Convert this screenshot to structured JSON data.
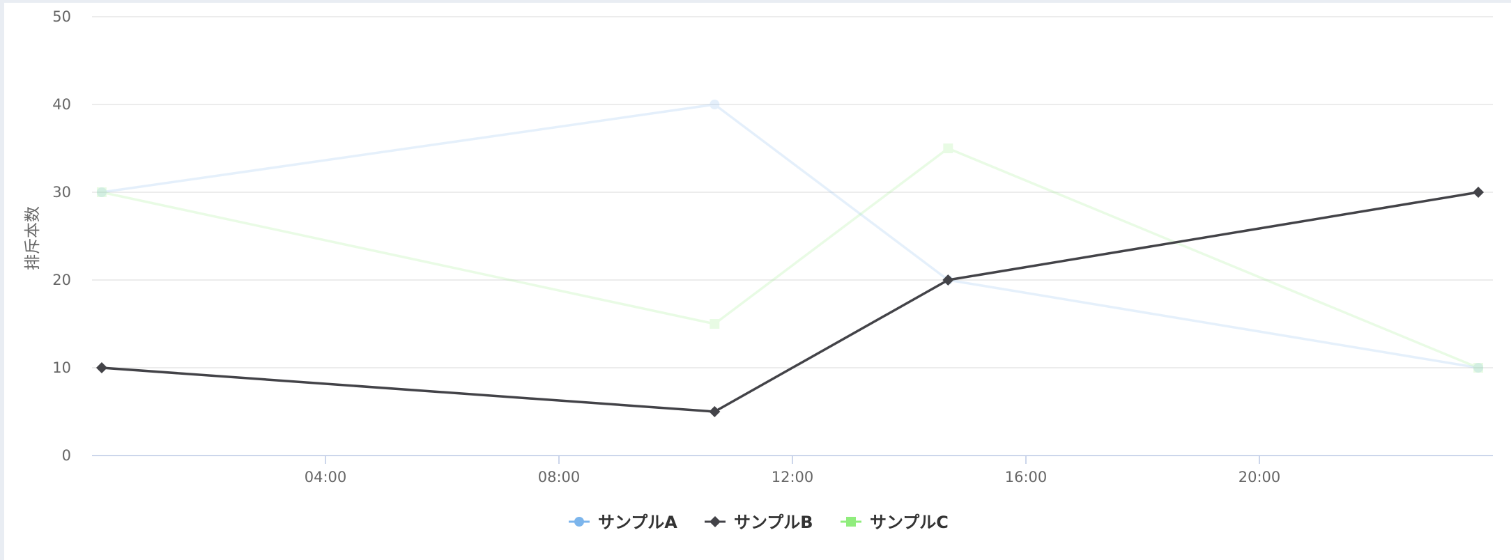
{
  "chart_data": {
    "type": "line",
    "ylabel": "排斥本数",
    "xlabel": "",
    "ylim": [
      0,
      50
    ],
    "yticks": [
      0,
      10,
      20,
      30,
      40,
      50
    ],
    "xlim": [
      0,
      24
    ],
    "xticks": [
      "04:00",
      "08:00",
      "12:00",
      "16:00",
      "20:00"
    ],
    "grid": true,
    "legend": "bottom-center",
    "series": [
      {
        "name": "サンプルA",
        "color": "#7cb5ec",
        "marker": "circle",
        "faded": true,
        "x": [
          "00:10",
          "10:40",
          "14:40",
          "23:45"
        ],
        "y": [
          30,
          40,
          20,
          10
        ]
      },
      {
        "name": "サンプルB",
        "color": "#434348",
        "marker": "diamond",
        "faded": false,
        "x": [
          "00:10",
          "10:40",
          "14:40",
          "23:45"
        ],
        "y": [
          10,
          5,
          20,
          30
        ]
      },
      {
        "name": "サンプルC",
        "color": "#90ed7d",
        "marker": "square",
        "faded": true,
        "x": [
          "00:10",
          "10:40",
          "14:40",
          "23:45"
        ],
        "y": [
          30,
          15,
          35,
          10
        ]
      }
    ]
  }
}
